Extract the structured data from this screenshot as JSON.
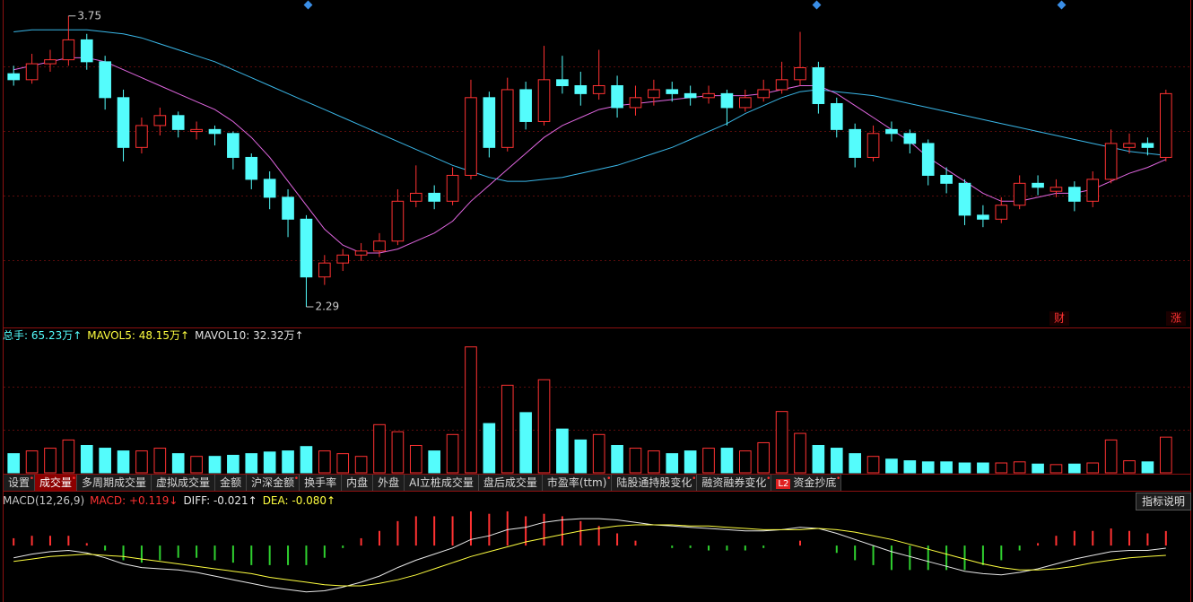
{
  "chart_data": {
    "type": "candlestick",
    "up_color": "#ff3232",
    "down_color": "#54fcfc",
    "ylim": [
      2.2,
      3.83
    ],
    "annotations": {
      "high": "3.75",
      "low": "2.29"
    },
    "candles": [
      [
        3.46,
        3.5,
        3.4,
        3.43
      ],
      [
        3.43,
        3.56,
        3.41,
        3.51
      ],
      [
        3.51,
        3.58,
        3.47,
        3.53
      ],
      [
        3.53,
        3.75,
        3.5,
        3.63
      ],
      [
        3.63,
        3.66,
        3.48,
        3.52
      ],
      [
        3.52,
        3.55,
        3.28,
        3.34
      ],
      [
        3.34,
        3.38,
        3.02,
        3.09
      ],
      [
        3.09,
        3.24,
        3.06,
        3.2
      ],
      [
        3.2,
        3.29,
        3.15,
        3.25
      ],
      [
        3.25,
        3.27,
        3.14,
        3.18
      ],
      [
        3.17,
        3.22,
        3.13,
        3.18
      ],
      [
        3.18,
        3.2,
        3.1,
        3.16
      ],
      [
        3.16,
        3.17,
        2.98,
        3.04
      ],
      [
        3.04,
        3.06,
        2.88,
        2.93
      ],
      [
        2.93,
        2.97,
        2.78,
        2.84
      ],
      [
        2.84,
        2.88,
        2.64,
        2.73
      ],
      [
        2.73,
        2.75,
        2.29,
        2.44
      ],
      [
        2.44,
        2.55,
        2.4,
        2.51
      ],
      [
        2.51,
        2.58,
        2.47,
        2.55
      ],
      [
        2.55,
        2.61,
        2.52,
        2.57
      ],
      [
        2.57,
        2.66,
        2.54,
        2.62
      ],
      [
        2.62,
        2.88,
        2.6,
        2.82
      ],
      [
        2.82,
        3.0,
        2.79,
        2.86
      ],
      [
        2.86,
        2.9,
        2.78,
        2.82
      ],
      [
        2.82,
        2.99,
        2.8,
        2.95
      ],
      [
        2.95,
        3.43,
        2.93,
        3.34
      ],
      [
        3.34,
        3.37,
        3.04,
        3.09
      ],
      [
        3.09,
        3.44,
        3.07,
        3.38
      ],
      [
        3.38,
        3.42,
        3.18,
        3.22
      ],
      [
        3.22,
        3.6,
        3.2,
        3.43
      ],
      [
        3.43,
        3.55,
        3.36,
        3.4
      ],
      [
        3.4,
        3.47,
        3.3,
        3.36
      ],
      [
        3.36,
        3.58,
        3.33,
        3.4
      ],
      [
        3.4,
        3.45,
        3.24,
        3.29
      ],
      [
        3.29,
        3.4,
        3.25,
        3.34
      ],
      [
        3.34,
        3.43,
        3.3,
        3.38
      ],
      [
        3.38,
        3.42,
        3.32,
        3.36
      ],
      [
        3.36,
        3.4,
        3.3,
        3.34
      ],
      [
        3.34,
        3.4,
        3.31,
        3.36
      ],
      [
        3.36,
        3.38,
        3.2,
        3.29
      ],
      [
        3.29,
        3.38,
        3.27,
        3.34
      ],
      [
        3.34,
        3.43,
        3.32,
        3.38
      ],
      [
        3.38,
        3.52,
        3.36,
        3.43
      ],
      [
        3.43,
        3.67,
        3.4,
        3.49
      ],
      [
        3.49,
        3.52,
        3.26,
        3.31
      ],
      [
        3.31,
        3.34,
        3.14,
        3.18
      ],
      [
        3.18,
        3.21,
        2.99,
        3.04
      ],
      [
        3.04,
        3.2,
        3.02,
        3.16
      ],
      [
        3.18,
        3.22,
        3.12,
        3.16
      ],
      [
        3.16,
        3.18,
        3.06,
        3.11
      ],
      [
        3.11,
        3.13,
        2.9,
        2.95
      ],
      [
        2.95,
        2.99,
        2.86,
        2.91
      ],
      [
        2.91,
        2.93,
        2.7,
        2.75
      ],
      [
        2.75,
        2.8,
        2.69,
        2.73
      ],
      [
        2.73,
        2.84,
        2.71,
        2.8
      ],
      [
        2.8,
        2.95,
        2.78,
        2.91
      ],
      [
        2.91,
        2.95,
        2.85,
        2.89
      ],
      [
        2.87,
        2.93,
        2.84,
        2.89
      ],
      [
        2.89,
        2.92,
        2.77,
        2.82
      ],
      [
        2.82,
        2.97,
        2.79,
        2.93
      ],
      [
        2.93,
        3.18,
        2.91,
        3.11
      ],
      [
        3.09,
        3.16,
        3.06,
        3.11
      ],
      [
        3.11,
        3.14,
        3.05,
        3.09
      ],
      [
        3.04,
        3.38,
        3.02,
        3.36
      ]
    ],
    "ma": [
      {
        "color": "#3ab7e8",
        "values": [
          3.67,
          3.68,
          3.68,
          3.68,
          3.68,
          3.67,
          3.66,
          3.64,
          3.61,
          3.58,
          3.55,
          3.52,
          3.48,
          3.44,
          3.4,
          3.36,
          3.32,
          3.28,
          3.24,
          3.2,
          3.16,
          3.12,
          3.08,
          3.04,
          3.0,
          2.97,
          2.94,
          2.92,
          2.92,
          2.93,
          2.94,
          2.96,
          2.98,
          3.0,
          3.03,
          3.06,
          3.09,
          3.13,
          3.17,
          3.21,
          3.26,
          3.3,
          3.34,
          3.37,
          3.38,
          3.37,
          3.36,
          3.35,
          3.33,
          3.31,
          3.29,
          3.27,
          3.25,
          3.23,
          3.21,
          3.19,
          3.17,
          3.15,
          3.13,
          3.11,
          3.09,
          3.07,
          3.06,
          3.05
        ]
      },
      {
        "color": "#e066e0",
        "values": [
          3.48,
          3.5,
          3.52,
          3.54,
          3.54,
          3.52,
          3.48,
          3.44,
          3.4,
          3.36,
          3.32,
          3.28,
          3.22,
          3.14,
          3.04,
          2.92,
          2.8,
          2.68,
          2.6,
          2.56,
          2.56,
          2.58,
          2.62,
          2.66,
          2.72,
          2.82,
          2.9,
          2.98,
          3.06,
          3.14,
          3.2,
          3.24,
          3.28,
          3.3,
          3.31,
          3.32,
          3.33,
          3.34,
          3.35,
          3.35,
          3.35,
          3.36,
          3.38,
          3.4,
          3.4,
          3.36,
          3.3,
          3.24,
          3.18,
          3.12,
          3.04,
          2.98,
          2.92,
          2.86,
          2.82,
          2.82,
          2.84,
          2.86,
          2.86,
          2.88,
          2.92,
          2.96,
          2.99,
          3.03
        ]
      }
    ],
    "volume": {
      "ylim": [
        0,
        236
      ],
      "legend": [
        {
          "text": "总手: 65.23万↑",
          "color": "#54fcfc"
        },
        {
          "text": "MAVOL5: 48.15万↑",
          "color": "#ffff40"
        },
        {
          "text": "MAVOL10: 32.32万↑",
          "color": "#e0e0e0"
        }
      ],
      "values": [
        35,
        40,
        45,
        60,
        50,
        45,
        40,
        40,
        45,
        35,
        30,
        30,
        32,
        35,
        38,
        40,
        48,
        40,
        35,
        30,
        88,
        75,
        50,
        40,
        70,
        230,
        90,
        160,
        110,
        170,
        80,
        60,
        70,
        50,
        45,
        40,
        35,
        40,
        45,
        45,
        40,
        55,
        112,
        72,
        50,
        45,
        35,
        30,
        25,
        22,
        20,
        20,
        18,
        18,
        18,
        20,
        16,
        15,
        16,
        18,
        60,
        22,
        20,
        65.23
      ]
    },
    "macd": {
      "ylim": [
        -0.44,
        0.39
      ],
      "up_color": "#ff3232",
      "down_color": "#2fd02f",
      "legend": [
        {
          "text": "MACD(12,26,9)",
          "color": "#c8c8c8"
        },
        {
          "text": "MACD: +0.119↓",
          "color": "#ff3232"
        },
        {
          "text": "DIFF: -0.021↑",
          "color": "#e8e8e8"
        },
        {
          "text": "DEA: -0.080↑",
          "color": "#ffff40"
        }
      ],
      "button": "指标说明",
      "values": [
        0.06,
        0.08,
        0.08,
        0.08,
        0.02,
        -0.04,
        -0.12,
        -0.14,
        -0.12,
        -0.1,
        -0.1,
        -0.12,
        -0.14,
        -0.16,
        -0.16,
        -0.16,
        -0.16,
        -0.1,
        -0.02,
        0.06,
        0.12,
        0.2,
        0.24,
        0.24,
        0.24,
        0.28,
        0.26,
        0.28,
        0.24,
        0.26,
        0.24,
        0.2,
        0.16,
        0.1,
        0.04,
        0.0,
        -0.02,
        -0.02,
        -0.04,
        -0.04,
        -0.04,
        -0.02,
        0.0,
        0.04,
        0.0,
        -0.06,
        -0.12,
        -0.16,
        -0.2,
        -0.2,
        -0.2,
        -0.2,
        -0.2,
        -0.16,
        -0.12,
        -0.04,
        0.02,
        0.08,
        0.12,
        0.12,
        0.14,
        0.12,
        0.1,
        0.119
      ],
      "diff": {
        "color": "#e8e8e8",
        "values": [
          -0.1,
          -0.07,
          -0.05,
          -0.04,
          -0.06,
          -0.1,
          -0.15,
          -0.18,
          -0.19,
          -0.2,
          -0.22,
          -0.25,
          -0.28,
          -0.31,
          -0.34,
          -0.36,
          -0.38,
          -0.37,
          -0.34,
          -0.3,
          -0.25,
          -0.18,
          -0.12,
          -0.07,
          -0.02,
          0.05,
          0.08,
          0.13,
          0.15,
          0.19,
          0.21,
          0.22,
          0.22,
          0.21,
          0.19,
          0.17,
          0.16,
          0.15,
          0.14,
          0.13,
          0.12,
          0.12,
          0.13,
          0.15,
          0.14,
          0.1,
          0.05,
          0.0,
          -0.05,
          -0.09,
          -0.13,
          -0.17,
          -0.21,
          -0.23,
          -0.24,
          -0.22,
          -0.19,
          -0.15,
          -0.11,
          -0.08,
          -0.05,
          -0.04,
          -0.04,
          -0.021
        ]
      },
      "dea": {
        "color": "#ffff40",
        "values": [
          -0.13,
          -0.11,
          -0.09,
          -0.08,
          -0.07,
          -0.08,
          -0.09,
          -0.11,
          -0.13,
          -0.15,
          -0.17,
          -0.19,
          -0.21,
          -0.23,
          -0.26,
          -0.28,
          -0.3,
          -0.32,
          -0.33,
          -0.33,
          -0.31,
          -0.28,
          -0.24,
          -0.19,
          -0.14,
          -0.09,
          -0.05,
          -0.01,
          0.03,
          0.06,
          0.09,
          0.12,
          0.14,
          0.16,
          0.17,
          0.17,
          0.17,
          0.16,
          0.16,
          0.15,
          0.14,
          0.13,
          0.13,
          0.13,
          0.14,
          0.13,
          0.11,
          0.08,
          0.05,
          0.01,
          -0.03,
          -0.07,
          -0.11,
          -0.15,
          -0.18,
          -0.2,
          -0.2,
          -0.19,
          -0.17,
          -0.14,
          -0.12,
          -0.1,
          -0.09,
          -0.08
        ]
      }
    },
    "markers": [
      "财",
      "涨"
    ]
  },
  "tabs": [
    "设置",
    "成交量",
    "多周期成交量",
    "虚拟成交量",
    "金额",
    "沪深金额",
    "换手率",
    "内盘",
    "外盘",
    "AI立桩成交量",
    "盘后成交量",
    "市盈率(ttm)",
    "陆股通持股变化",
    "融资融券变化",
    "资金抄底"
  ],
  "tabs_badge": "L2"
}
